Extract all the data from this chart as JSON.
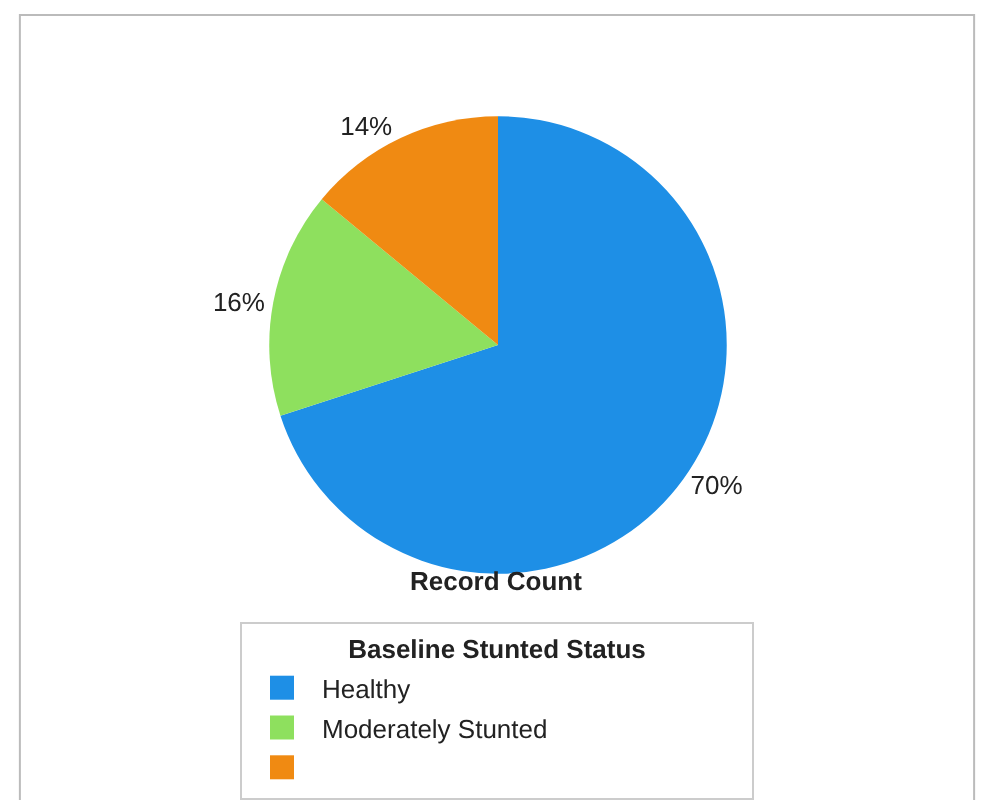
{
  "chart_data": {
    "type": "pie",
    "xlabel": "Record Count",
    "legend_title": "Baseline Stunted Status",
    "categories": [
      "Healthy",
      "Moderately Stunted",
      null
    ],
    "values": [
      70,
      16,
      14
    ],
    "value_labels": [
      "70%",
      "16%",
      "14%"
    ],
    "colors": [
      "#1e8fe6",
      "#8ee05e",
      "#f08a12"
    ],
    "legend": "bottom"
  }
}
